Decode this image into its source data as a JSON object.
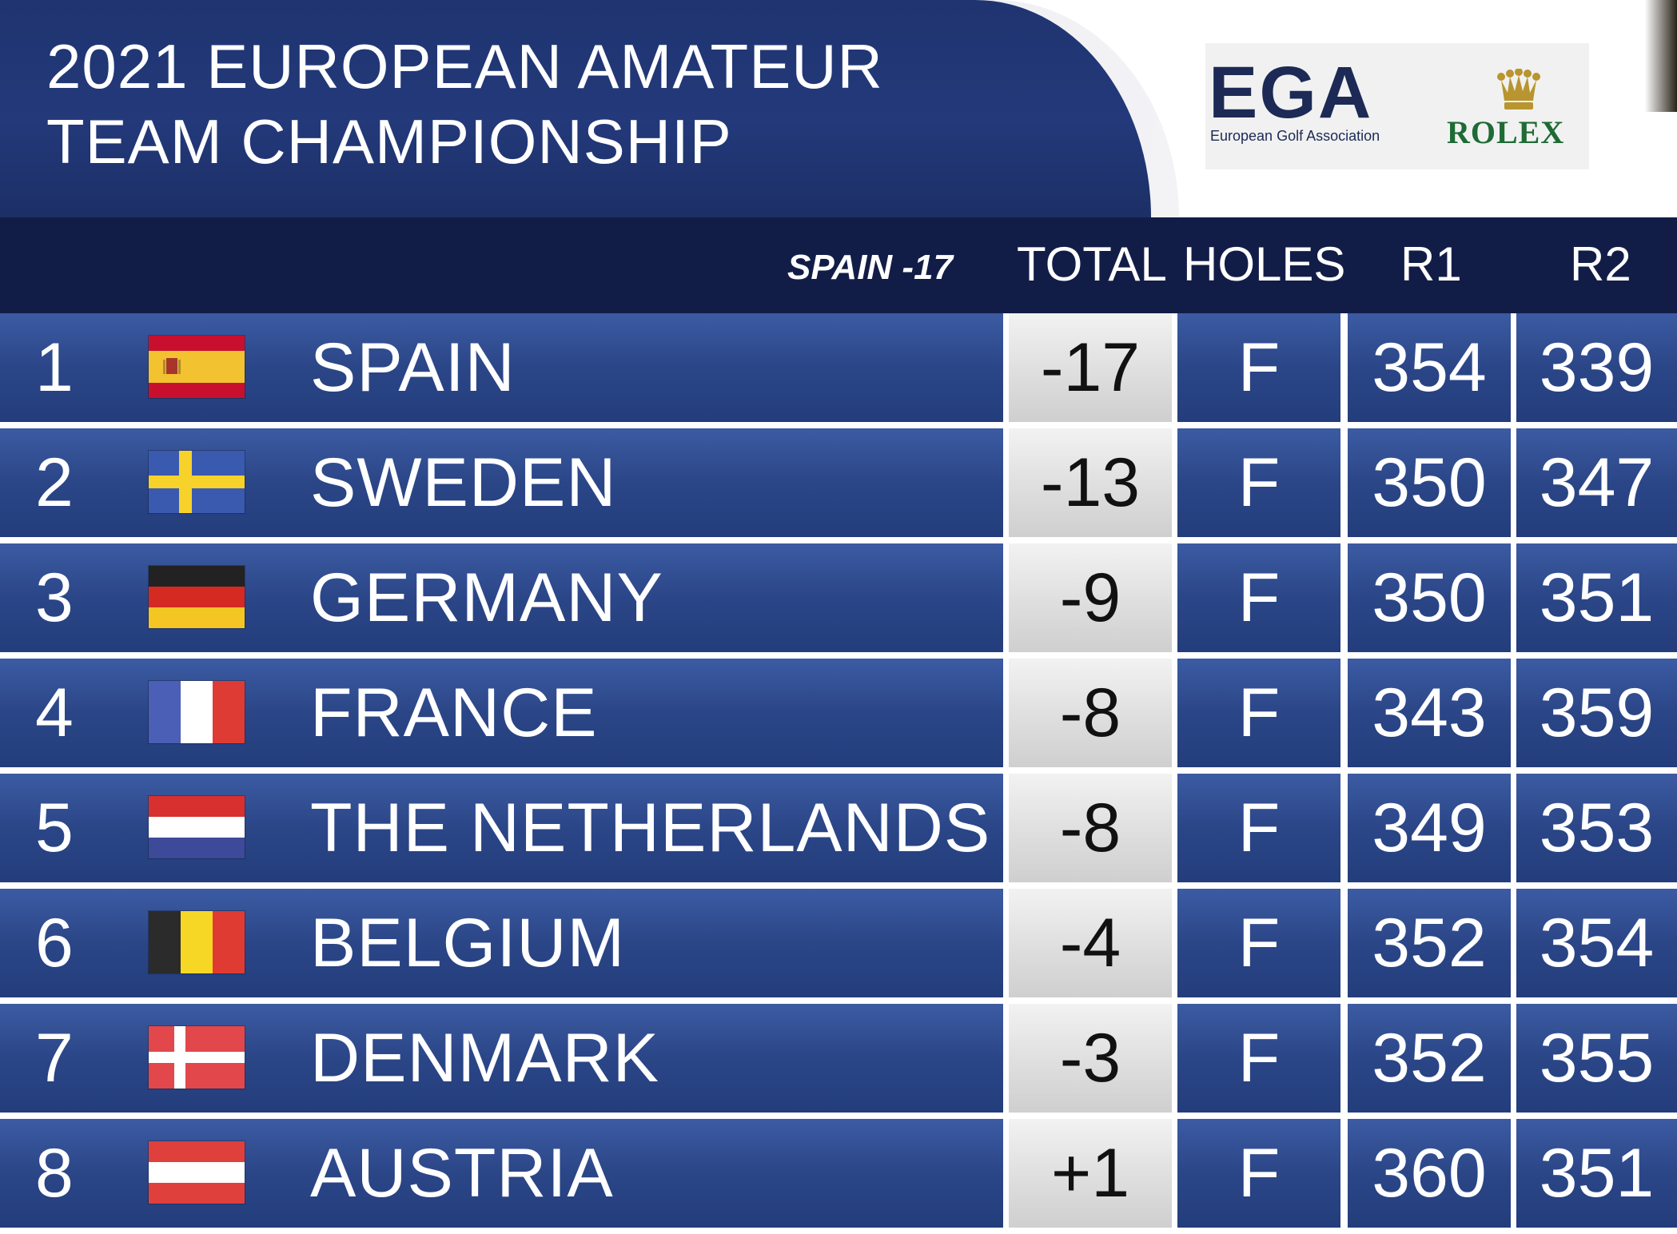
{
  "header": {
    "title_line1": "2021 EUROPEAN AMATEUR",
    "title_line2": "TEAM CHAMPIONSHIP",
    "sponsors": {
      "ega_logo": "EGA",
      "ega_tagline": "European Golf Association",
      "rolex_logo": "ROLEX"
    }
  },
  "columns": {
    "leader": "SPAIN -17",
    "total": "TOTAL",
    "holes": "HOLES",
    "r1": "R1",
    "r2": "R2"
  },
  "colors": {
    "navy": "#121d47",
    "row_blue": "#2b4687",
    "score_grey": "#e0e0e0"
  },
  "rows": [
    {
      "pos": "1",
      "team": "SPAIN",
      "flag": "spain-flag-icon",
      "total": "-17",
      "holes": "F",
      "r1": "354",
      "r2": "339"
    },
    {
      "pos": "2",
      "team": "SWEDEN",
      "flag": "sweden-flag-icon",
      "total": "-13",
      "holes": "F",
      "r1": "350",
      "r2": "347"
    },
    {
      "pos": "3",
      "team": "GERMANY",
      "flag": "germany-flag-icon",
      "total": "-9",
      "holes": "F",
      "r1": "350",
      "r2": "351"
    },
    {
      "pos": "4",
      "team": "FRANCE",
      "flag": "france-flag-icon",
      "total": "-8",
      "holes": "F",
      "r1": "343",
      "r2": "359"
    },
    {
      "pos": "5",
      "team": "THE NETHERLANDS",
      "flag": "netherlands-flag-icon",
      "total": "-8",
      "holes": "F",
      "r1": "349",
      "r2": "353"
    },
    {
      "pos": "6",
      "team": "BELGIUM",
      "flag": "belgium-flag-icon",
      "total": "-4",
      "holes": "F",
      "r1": "352",
      "r2": "354"
    },
    {
      "pos": "7",
      "team": "DENMARK",
      "flag": "denmark-flag-icon",
      "total": "-3",
      "holes": "F",
      "r1": "352",
      "r2": "355"
    },
    {
      "pos": "8",
      "team": "AUSTRIA",
      "flag": "austria-flag-icon",
      "total": "+1",
      "holes": "F",
      "r1": "360",
      "r2": "351"
    }
  ]
}
